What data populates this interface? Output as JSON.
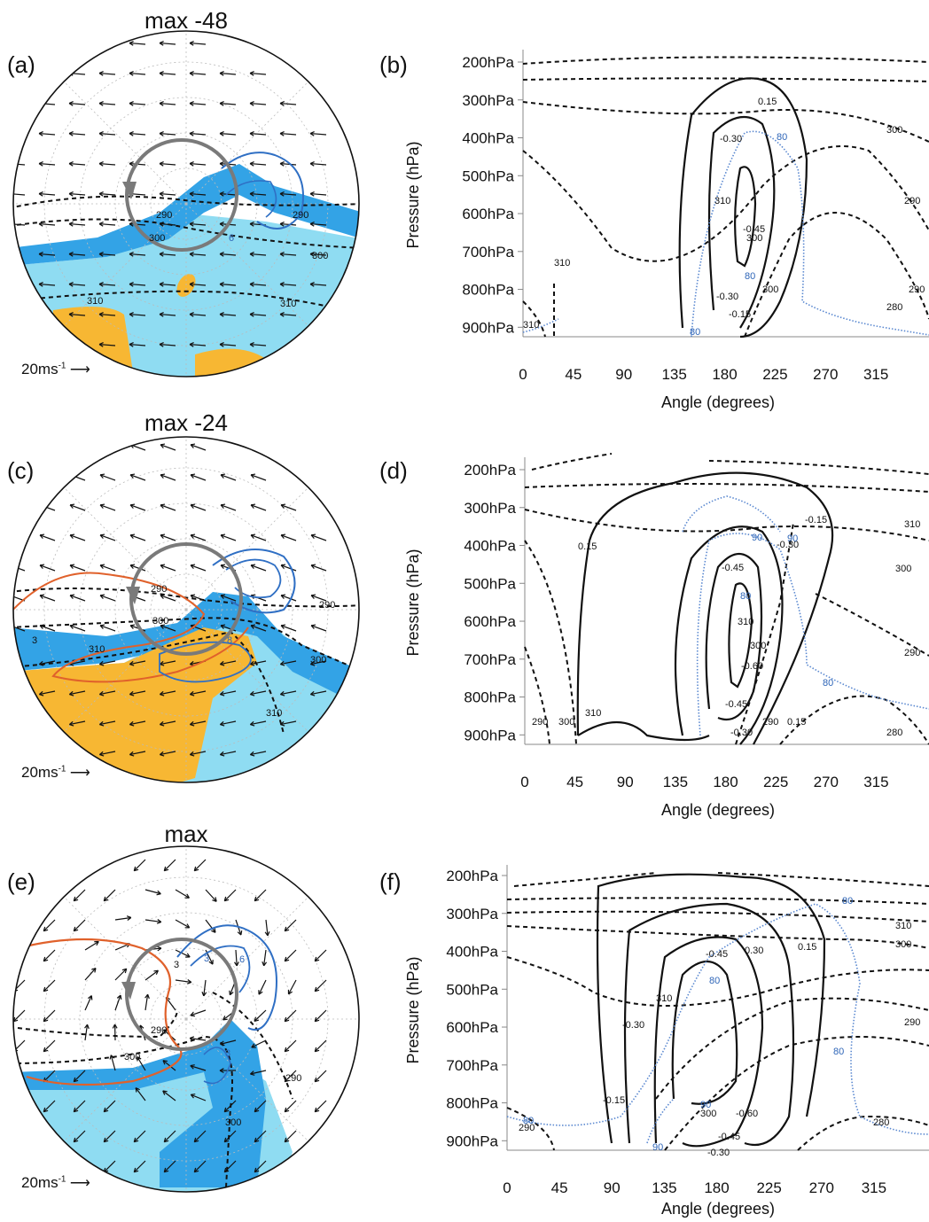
{
  "titles": {
    "a": "max -48",
    "c": "max -24",
    "e": "max"
  },
  "letters": [
    "(a)",
    "(b)",
    "(c)",
    "(d)",
    "(e)",
    "(f)"
  ],
  "scale_label": "20ms",
  "scale_sup": "-1",
  "colors": {
    "light_blue": "#8fdcf2",
    "mid_blue": "#33a3e6",
    "orange": "#f7b733",
    "red_contour": "#e0612b",
    "blue_contour": "#2f6fc4",
    "blue_dotted": "#5a88d0",
    "grey_circle": "#7a7a7a"
  },
  "chart_data": [
    {
      "type": "polar-map",
      "panel": "(a)",
      "title": "max -48",
      "contour_labels": [
        "290",
        "290",
        "300",
        "300",
        "310",
        "310",
        "6"
      ]
    },
    {
      "type": "cross-section",
      "panel": "(b)",
      "xlabel": "Angle (degrees)",
      "ylabel": "Pressure (hPa)",
      "x_ticks": [
        "0",
        "45",
        "90",
        "135",
        "180",
        "225",
        "270",
        "315"
      ],
      "y_ticks": [
        "200hPa",
        "300hPa",
        "400hPa",
        "500hPa",
        "600hPa",
        "700hPa",
        "800hPa",
        "900hPa"
      ],
      "xlim": [
        0,
        360
      ],
      "ylim": [
        925,
        200
      ],
      "contour_labels": [
        "0.15",
        "-0.30",
        "-0.45",
        "310",
        "300",
        "-0.30",
        "-0.15",
        "80",
        "80",
        "80",
        "310",
        "300",
        "310",
        "300",
        "290",
        "280",
        "290"
      ]
    },
    {
      "type": "polar-map",
      "panel": "(c)",
      "title": "max -24",
      "contour_labels": [
        "290",
        "290",
        "300",
        "300",
        "310",
        "310",
        "3",
        "8"
      ]
    },
    {
      "type": "cross-section",
      "panel": "(d)",
      "xlabel": "Angle (degrees)",
      "ylabel": "Pressure (hPa)",
      "x_ticks": [
        "0",
        "45",
        "90",
        "135",
        "180",
        "225",
        "270",
        "315"
      ],
      "y_ticks": [
        "200hPa",
        "300hPa",
        "400hPa",
        "500hPa",
        "600hPa",
        "700hPa",
        "800hPa",
        "900hPa"
      ],
      "xlim": [
        0,
        360
      ],
      "ylim": [
        925,
        200
      ],
      "contour_labels": [
        "0.15",
        "-0.30",
        "-0.15",
        "-0.45",
        "310",
        "-0.60",
        "-0.45",
        "-0.30",
        "300",
        "290",
        "0.15",
        "80",
        "80",
        "90",
        "90",
        "310",
        "300",
        "300",
        "290",
        "280",
        "310",
        "290"
      ]
    },
    {
      "type": "polar-map",
      "panel": "(e)",
      "title": "max",
      "contour_labels": [
        "290",
        "300",
        "300",
        "290",
        "3",
        "3",
        "6",
        "3"
      ]
    },
    {
      "type": "cross-section",
      "panel": "(f)",
      "xlabel": "Angle (degrees)",
      "ylabel": "Pressure (hPa)",
      "x_ticks": [
        "0",
        "45",
        "90",
        "135",
        "180",
        "225",
        "270",
        "315"
      ],
      "y_ticks": [
        "200hPa",
        "300hPa",
        "400hPa",
        "500hPa",
        "600hPa",
        "700hPa",
        "800hPa",
        "900hPa"
      ],
      "xlim": [
        0,
        360
      ],
      "ylim": [
        925,
        200
      ],
      "contour_labels": [
        "-0.15",
        "-0.30",
        "-0.45",
        "0.30",
        "0.15",
        "-0.60",
        "-0.45",
        "-0.30",
        "310",
        "300",
        "290",
        "280",
        "310",
        "300",
        "290",
        "80",
        "80",
        "80",
        "90",
        "90",
        "80"
      ]
    }
  ]
}
